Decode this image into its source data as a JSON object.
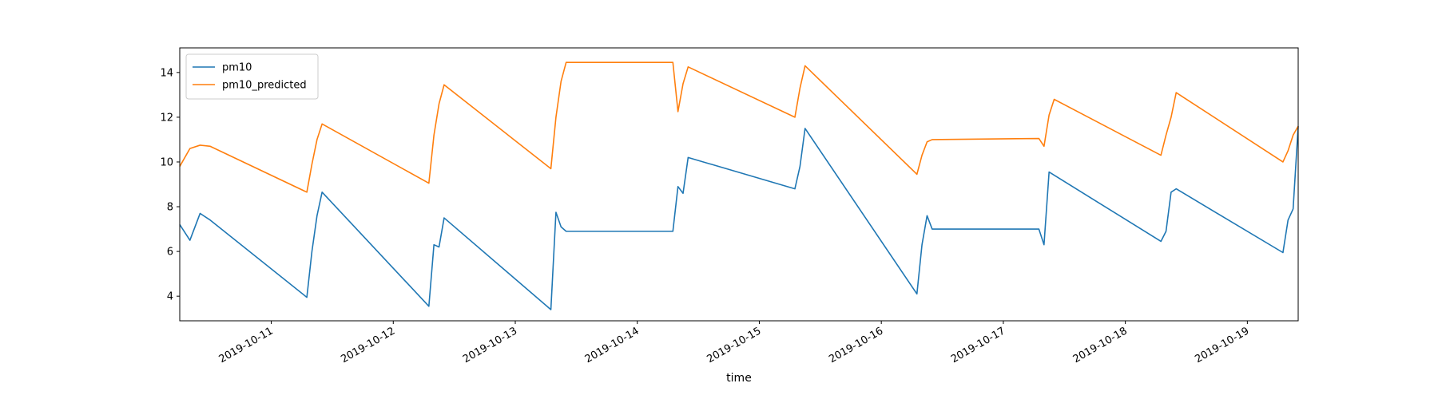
{
  "chart_data": {
    "type": "line",
    "title": "",
    "xlabel": "time",
    "ylabel": "",
    "x_is_date": true,
    "xlim": [
      "2019-10-10T06:00",
      "2019-10-19T10:00"
    ],
    "ylim": [
      2.9,
      15.1
    ],
    "yticks": [
      4,
      6,
      8,
      10,
      12,
      14
    ],
    "xticks": [
      {
        "value": "2019-10-11T00:00",
        "label": "2019-10-11"
      },
      {
        "value": "2019-10-12T00:00",
        "label": "2019-10-12"
      },
      {
        "value": "2019-10-13T00:00",
        "label": "2019-10-13"
      },
      {
        "value": "2019-10-14T00:00",
        "label": "2019-10-14"
      },
      {
        "value": "2019-10-15T00:00",
        "label": "2019-10-15"
      },
      {
        "value": "2019-10-16T00:00",
        "label": "2019-10-16"
      },
      {
        "value": "2019-10-17T00:00",
        "label": "2019-10-17"
      },
      {
        "value": "2019-10-18T00:00",
        "label": "2019-10-18"
      },
      {
        "value": "2019-10-19T00:00",
        "label": "2019-10-19"
      }
    ],
    "grid": false,
    "legend_position": "top-left",
    "series": [
      {
        "name": "pm10",
        "color": "#1f77b4",
        "points": [
          [
            "2019-10-10T06:00",
            7.2
          ],
          [
            "2019-10-10T08:00",
            6.5
          ],
          [
            "2019-10-10T10:00",
            7.7
          ],
          [
            "2019-10-10T12:00",
            7.4
          ],
          [
            "2019-10-11T07:00",
            3.95
          ],
          [
            "2019-10-11T08:00",
            6.0
          ],
          [
            "2019-10-11T09:00",
            7.6
          ],
          [
            "2019-10-11T10:00",
            8.65
          ],
          [
            "2019-10-12T07:00",
            3.55
          ],
          [
            "2019-10-12T08:00",
            6.3
          ],
          [
            "2019-10-12T09:00",
            6.2
          ],
          [
            "2019-10-12T10:00",
            7.5
          ],
          [
            "2019-10-13T07:00",
            3.4
          ],
          [
            "2019-10-13T08:00",
            7.75
          ],
          [
            "2019-10-13T09:00",
            7.1
          ],
          [
            "2019-10-13T10:00",
            6.9
          ],
          [
            "2019-10-14T07:00",
            6.9
          ],
          [
            "2019-10-14T08:00",
            8.9
          ],
          [
            "2019-10-14T09:00",
            8.6
          ],
          [
            "2019-10-14T10:00",
            10.2
          ],
          [
            "2019-10-15T07:00",
            8.8
          ],
          [
            "2019-10-15T08:00",
            9.8
          ],
          [
            "2019-10-15T09:00",
            11.5
          ],
          [
            "2019-10-16T07:00",
            4.1
          ],
          [
            "2019-10-16T08:00",
            6.3
          ],
          [
            "2019-10-16T09:00",
            7.6
          ],
          [
            "2019-10-16T10:00",
            7.0
          ],
          [
            "2019-10-17T07:00",
            7.0
          ],
          [
            "2019-10-17T08:00",
            6.3
          ],
          [
            "2019-10-17T09:00",
            9.55
          ],
          [
            "2019-10-18T07:00",
            6.45
          ],
          [
            "2019-10-18T08:00",
            6.9
          ],
          [
            "2019-10-18T09:00",
            8.65
          ],
          [
            "2019-10-18T10:00",
            8.8
          ],
          [
            "2019-10-19T07:00",
            5.95
          ],
          [
            "2019-10-19T08:00",
            7.4
          ],
          [
            "2019-10-19T09:00",
            7.9
          ],
          [
            "2019-10-19T10:00",
            11.6
          ]
        ]
      },
      {
        "name": "pm10_predicted",
        "color": "#ff7f0e",
        "points": [
          [
            "2019-10-10T06:00",
            9.8
          ],
          [
            "2019-10-10T08:00",
            10.6
          ],
          [
            "2019-10-10T10:00",
            10.75
          ],
          [
            "2019-10-10T12:00",
            10.7
          ],
          [
            "2019-10-11T07:00",
            8.65
          ],
          [
            "2019-10-11T08:00",
            9.9
          ],
          [
            "2019-10-11T09:00",
            11.0
          ],
          [
            "2019-10-11T10:00",
            11.7
          ],
          [
            "2019-10-12T07:00",
            9.05
          ],
          [
            "2019-10-12T08:00",
            11.2
          ],
          [
            "2019-10-12T09:00",
            12.6
          ],
          [
            "2019-10-12T10:00",
            13.45
          ],
          [
            "2019-10-13T07:00",
            9.7
          ],
          [
            "2019-10-13T08:00",
            12.0
          ],
          [
            "2019-10-13T09:00",
            13.6
          ],
          [
            "2019-10-13T10:00",
            14.45
          ],
          [
            "2019-10-14T07:00",
            14.45
          ],
          [
            "2019-10-14T08:00",
            12.25
          ],
          [
            "2019-10-14T09:00",
            13.5
          ],
          [
            "2019-10-14T10:00",
            14.25
          ],
          [
            "2019-10-15T07:00",
            12.0
          ],
          [
            "2019-10-15T08:00",
            13.3
          ],
          [
            "2019-10-15T09:00",
            14.3
          ],
          [
            "2019-10-16T07:00",
            9.45
          ],
          [
            "2019-10-16T08:00",
            10.3
          ],
          [
            "2019-10-16T09:00",
            10.9
          ],
          [
            "2019-10-16T10:00",
            11.0
          ],
          [
            "2019-10-17T07:00",
            11.05
          ],
          [
            "2019-10-17T08:00",
            10.7
          ],
          [
            "2019-10-17T09:00",
            12.1
          ],
          [
            "2019-10-17T10:00",
            12.8
          ],
          [
            "2019-10-18T07:00",
            10.3
          ],
          [
            "2019-10-18T08:00",
            11.2
          ],
          [
            "2019-10-18T09:00",
            12.0
          ],
          [
            "2019-10-18T10:00",
            13.1
          ],
          [
            "2019-10-19T07:00",
            10.0
          ],
          [
            "2019-10-19T08:00",
            10.5
          ],
          [
            "2019-10-19T09:00",
            11.2
          ],
          [
            "2019-10-19T10:00",
            11.6
          ]
        ]
      }
    ]
  }
}
